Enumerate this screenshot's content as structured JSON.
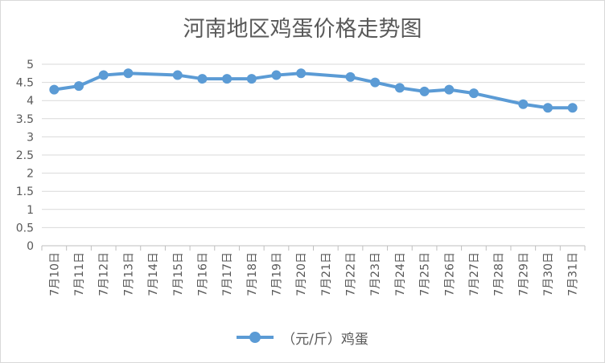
{
  "chart_data": {
    "type": "line",
    "title": "河南地区鸡蛋价格走势图",
    "categories": [
      "7月10日",
      "7月11日",
      "7月12日",
      "7月13日",
      "7月14日",
      "7月15日",
      "7月16日",
      "7月17日",
      "7月18日",
      "7月19日",
      "7月20日",
      "7月21日",
      "7月22日",
      "7月23日",
      "7月24日",
      "7月25日",
      "7月26日",
      "7月27日",
      "7月28日",
      "7月29日",
      "7月30日",
      "7月31日"
    ],
    "series": [
      {
        "name": "（元/斤）鸡蛋",
        "color": "#5b9bd5",
        "values": [
          4.3,
          4.4,
          4.7,
          4.75,
          null,
          4.7,
          4.6,
          4.6,
          4.6,
          4.7,
          4.75,
          null,
          4.65,
          4.5,
          4.35,
          4.25,
          4.3,
          4.2,
          null,
          3.9,
          3.8,
          3.8
        ]
      }
    ],
    "yticks": [
      "0",
      "0.5",
      "1",
      "1.5",
      "2",
      "2.5",
      "3",
      "3.5",
      "4",
      "4.5",
      "5"
    ],
    "ylim": [
      0,
      5
    ],
    "grid": true,
    "legend": "bottom",
    "gaps_connected": true
  }
}
